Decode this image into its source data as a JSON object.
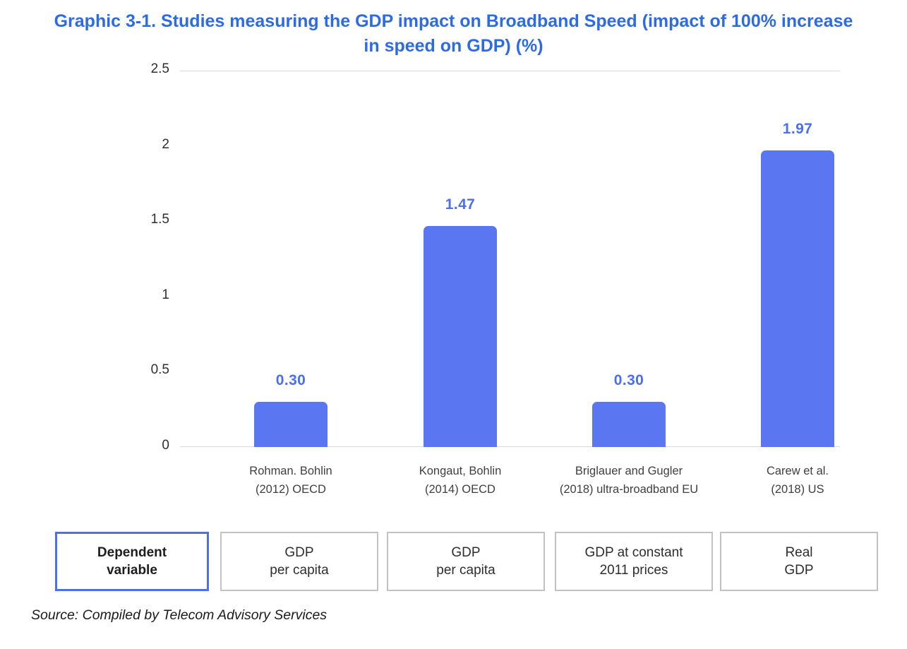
{
  "page": {
    "title": "Graphic 3-1. Studies measuring the GDP impact on Broadband Speed (impact of 100% increase in speed on GDP) (%)",
    "source": "Source: Compiled by Telecom Advisory Services"
  },
  "colors": {
    "title": "#2d6be4",
    "bar": "#5b76f1",
    "value_label": "#4a6ff0",
    "axis_text": "#2f2f2f",
    "category_text": "#3f3f3f",
    "grid_line": "#d9d9d9",
    "box_border": "#c2c2c2",
    "header_box_border": "#4a6ff0"
  },
  "chart_data": {
    "type": "bar",
    "title": "Graphic 3-1. Studies measuring the GDP impact on Broadband Speed (impact of 100% increase in speed on GDP) (%)",
    "categories": [
      [
        "Rohman. Bohlin",
        "(2012) OECD"
      ],
      [
        "Kongaut, Bohlin",
        "(2014) OECD"
      ],
      [
        "Briglauer and Gugler",
        "(2018) ultra-broadband EU"
      ],
      [
        "Carew et al.",
        "(2018) US"
      ]
    ],
    "values": [
      0.3,
      1.47,
      0.3,
      1.97
    ],
    "value_labels": [
      "0.30",
      "1.47",
      "0.30",
      "1.97"
    ],
    "xlabel": "",
    "ylabel": "",
    "ylim": [
      0,
      2.5
    ],
    "yticks": [
      0,
      0.5,
      1,
      1.5,
      2,
      2.5
    ],
    "ytick_labels": [
      "0",
      "0.5",
      "1",
      "1.5",
      "2",
      "2.5"
    ],
    "grid": "horizontal lines at top (2.5) and bottom (0) only",
    "legend_position": "none"
  },
  "dependent_variable_row": {
    "header": [
      "Dependent",
      "variable"
    ],
    "boxes": [
      [
        "GDP",
        "per capita"
      ],
      [
        "GDP",
        "per capita"
      ],
      [
        "GDP at constant",
        "2011 prices"
      ],
      [
        "Real",
        "GDP"
      ]
    ]
  }
}
